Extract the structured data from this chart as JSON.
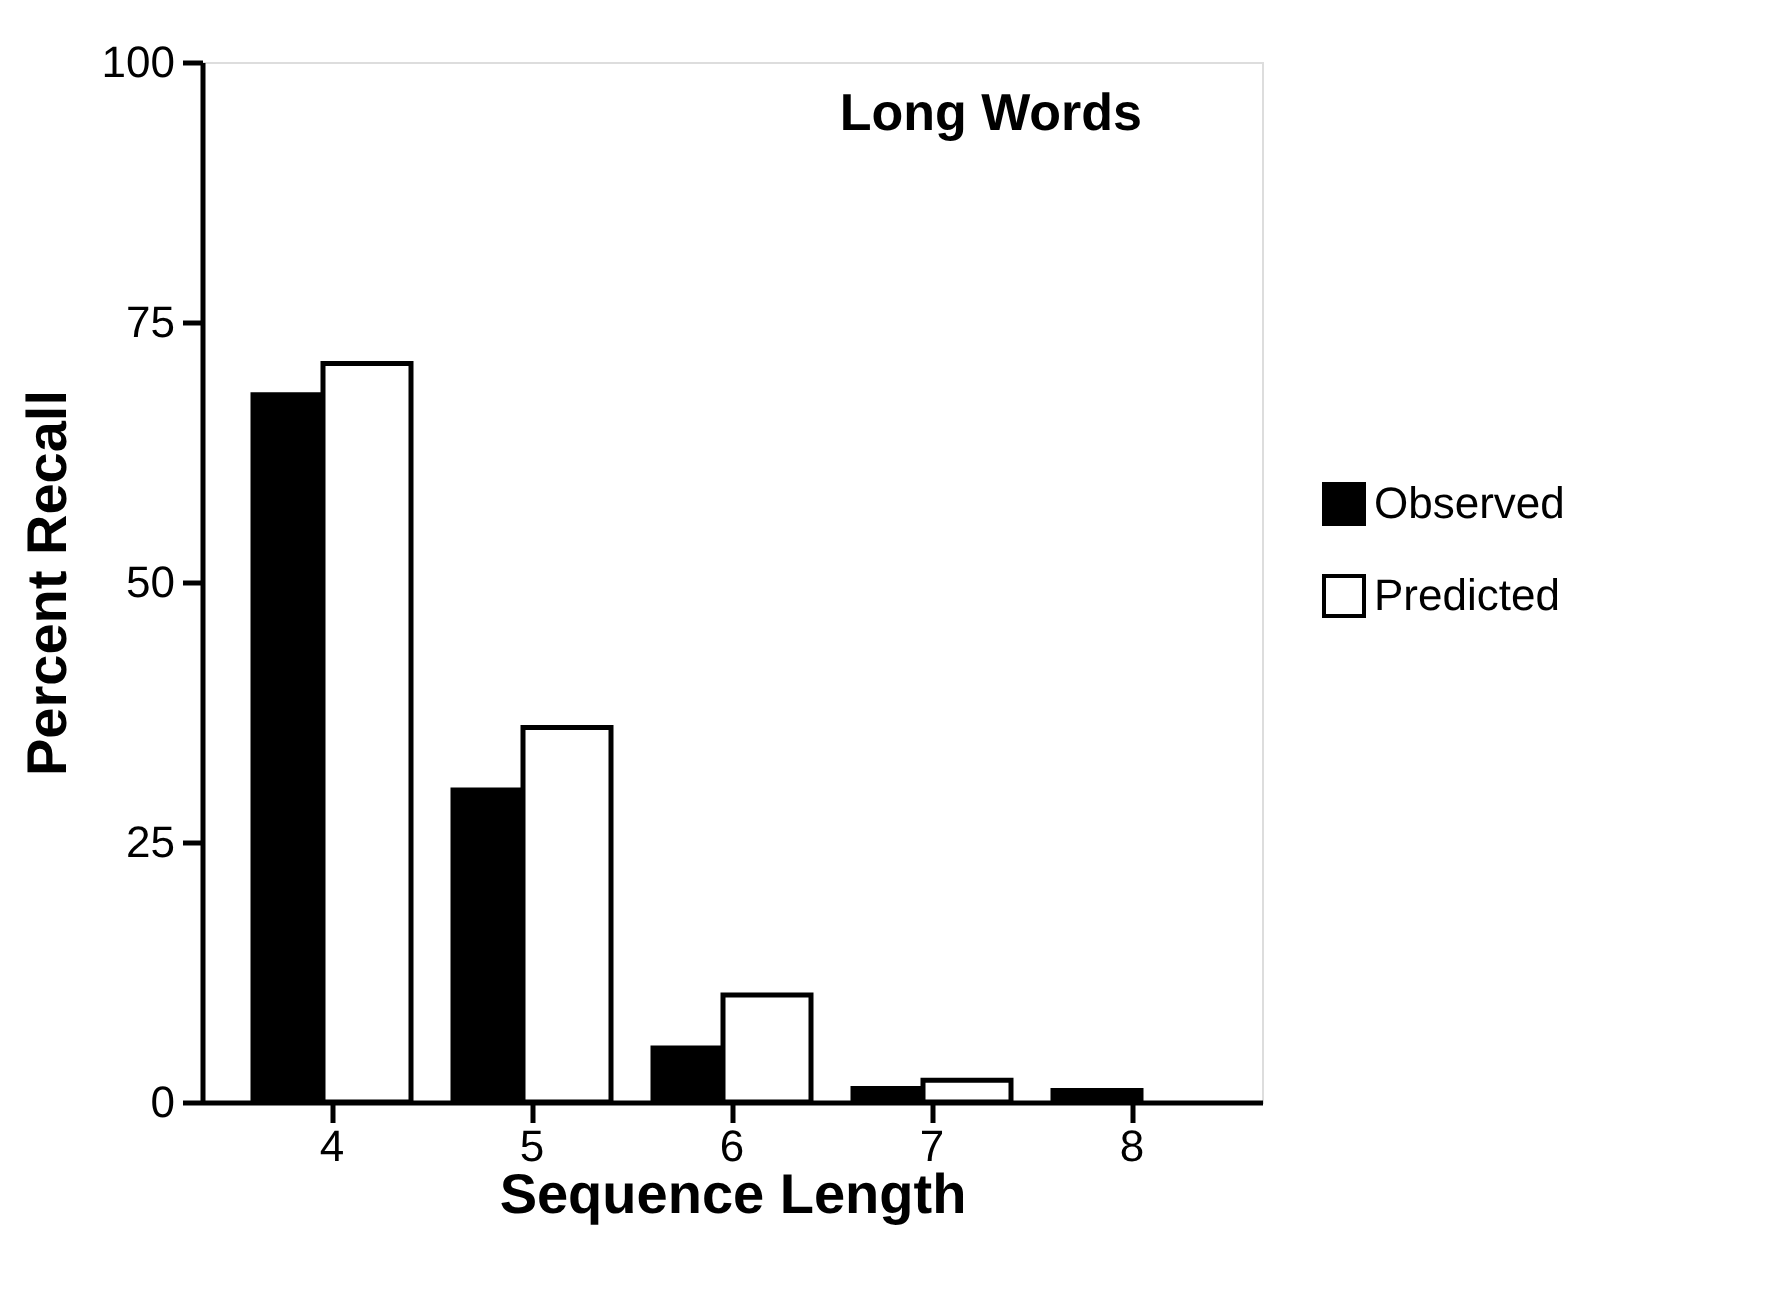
{
  "chart_data": {
    "type": "bar",
    "title": "Long Words",
    "xlabel": "Sequence Length",
    "ylabel": "Percent Recall",
    "categories": [
      "4",
      "5",
      "6",
      "7",
      "8"
    ],
    "series": [
      {
        "name": "Observed",
        "color": "#000000",
        "values": [
          68,
          30,
          5.2,
          1.3,
          1.1
        ]
      },
      {
        "name": "Predicted",
        "color": "#ffffff",
        "values": [
          71,
          36,
          10.3,
          2.1,
          null
        ]
      }
    ],
    "ylim": [
      0,
      100
    ],
    "yticks": [
      0,
      25,
      50,
      75,
      100
    ],
    "grid": false,
    "legend": "right"
  }
}
